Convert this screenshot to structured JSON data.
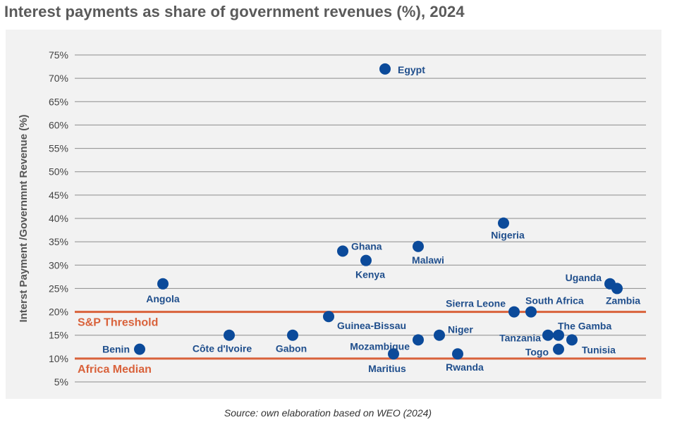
{
  "title": "Interest payments as share of government revenues (%), 2024",
  "source": "Source: own elaboration based on WEO (2024)",
  "colors": {
    "point": "#0b4a9a",
    "label": "#1f4e8c",
    "reference": "#d9623b",
    "grid": "#8c8c8c",
    "background": "#f2f2f2"
  },
  "chart_data": {
    "type": "scatter",
    "ylabel": "Interst Payment /Governmnt Revenue (%)",
    "xlabel": "",
    "ylim": [
      5,
      75
    ],
    "yticks": [
      "5%",
      "10%",
      "15%",
      "20%",
      "25%",
      "30%",
      "35%",
      "40%",
      "45%",
      "50%",
      "55%",
      "60%",
      "65%",
      "70%",
      "75%"
    ],
    "grid": "horizontal",
    "reference_lines": [
      {
        "name": "S&P Threshold",
        "value": 20
      },
      {
        "name": "Africa Median",
        "value": 10
      }
    ],
    "points": [
      {
        "name": "Benin",
        "x": 1,
        "y": 12
      },
      {
        "name": "Angola",
        "x": 2,
        "y": 26
      },
      {
        "name": "Côte d'Ivoire",
        "x": 3,
        "y": 15
      },
      {
        "name": "Gabon",
        "x": 4,
        "y": 15
      },
      {
        "name": "Guinea-Bissau",
        "x": 5,
        "y": 19
      },
      {
        "name": "Ghana",
        "x": 6,
        "y": 33
      },
      {
        "name": "Kenya",
        "x": 7,
        "y": 31
      },
      {
        "name": "Egypt",
        "x": 8,
        "y": 72
      },
      {
        "name": "Maritius",
        "x": 9,
        "y": 11
      },
      {
        "name": "Mozambique",
        "x": 10,
        "y": 14
      },
      {
        "name": "Malawi",
        "x": 11,
        "y": 34
      },
      {
        "name": "Niger",
        "x": 12,
        "y": 15
      },
      {
        "name": "Rwanda",
        "x": 13,
        "y": 11
      },
      {
        "name": "Nigeria",
        "x": 14,
        "y": 39
      },
      {
        "name": "Sierra Leone",
        "x": 15,
        "y": 20
      },
      {
        "name": "South Africa",
        "x": 16,
        "y": 20
      },
      {
        "name": "Tanzania",
        "x": 17,
        "y": 15
      },
      {
        "name": "The Gamba",
        "x": 18,
        "y": 15
      },
      {
        "name": "Togo",
        "x": 19,
        "y": 12
      },
      {
        "name": "Tunisia",
        "x": 20,
        "y": 14
      },
      {
        "name": "Uganda",
        "x": 21,
        "y": 26
      },
      {
        "name": "Zambia",
        "x": 22,
        "y": 25
      }
    ]
  }
}
